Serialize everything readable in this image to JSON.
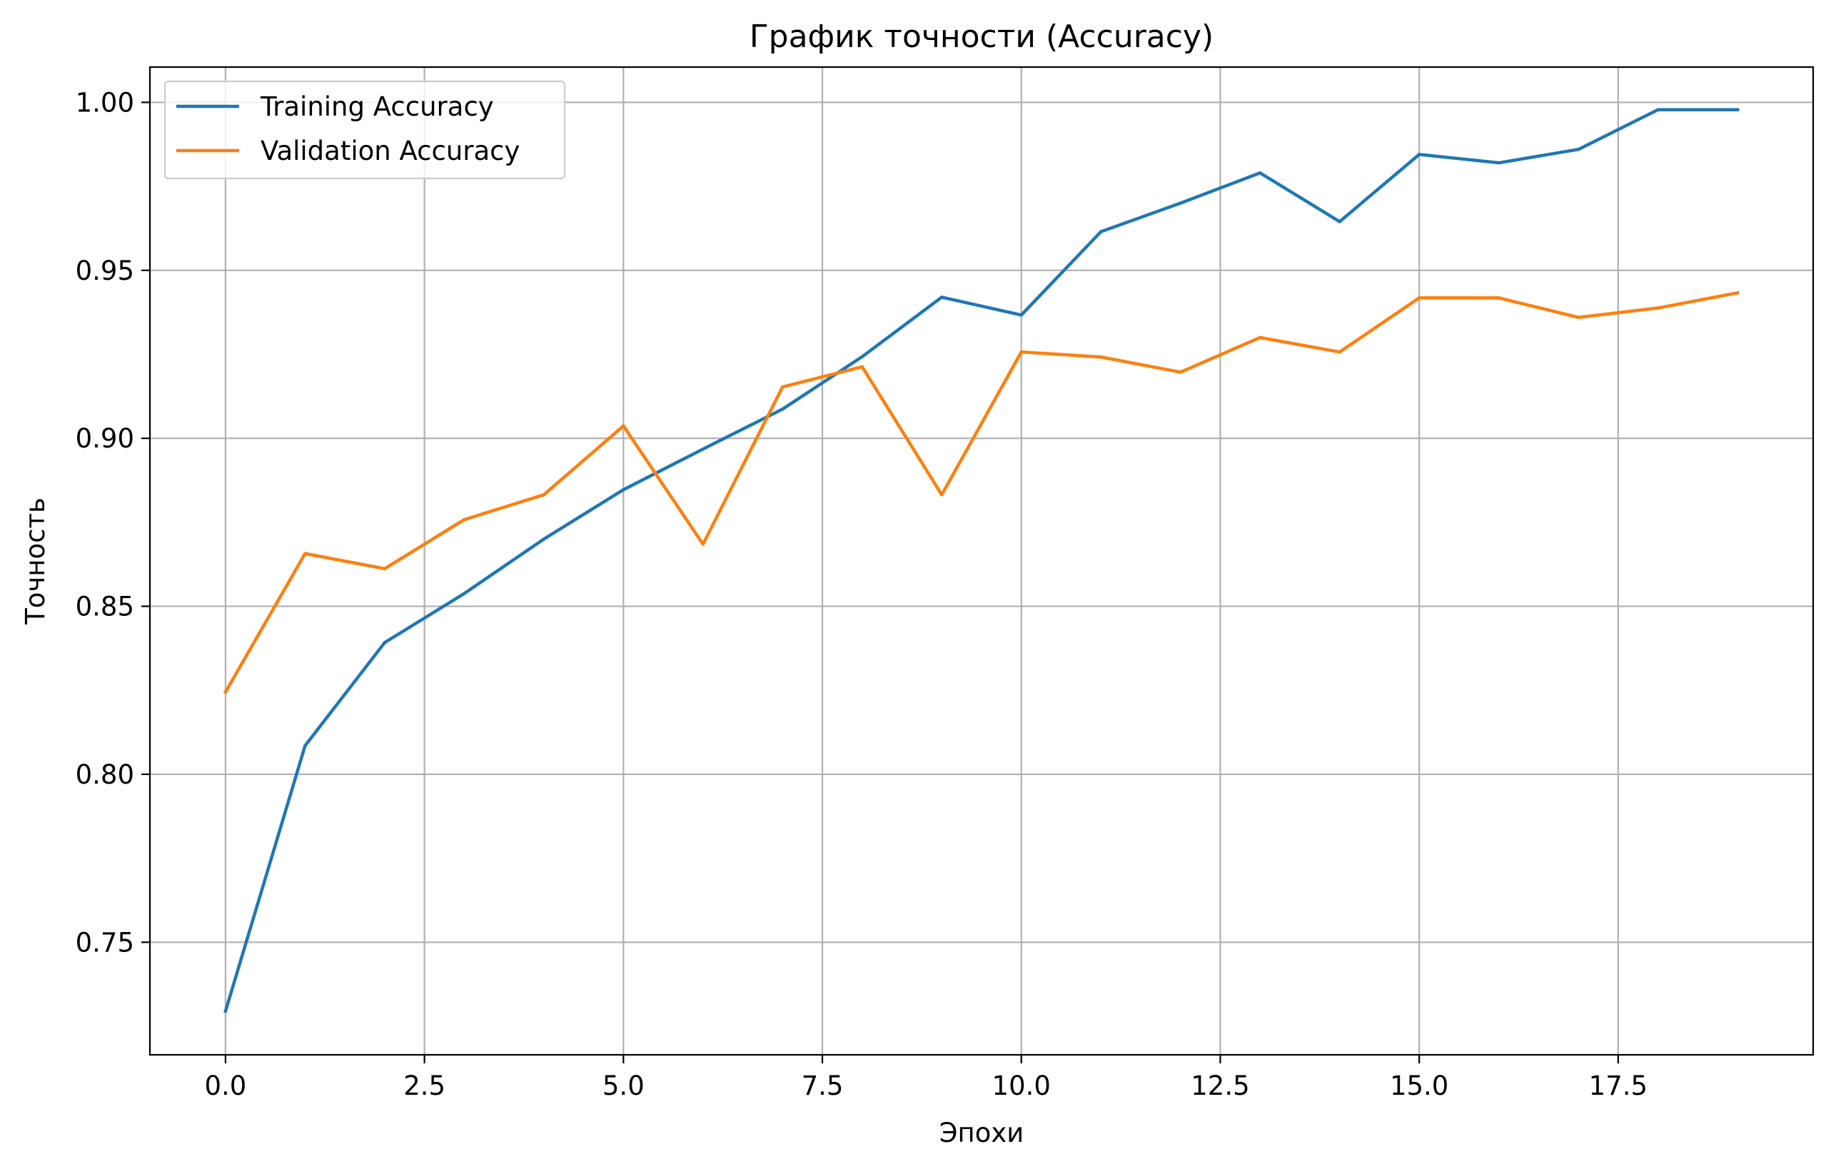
{
  "chart_data": {
    "type": "line",
    "title": "График точности (Accuracy)",
    "xlabel": "Эпохи",
    "ylabel": "Точность",
    "xlim": [
      -0.95,
      19.95
    ],
    "ylim": [
      0.7165,
      1.0105
    ],
    "xticks": [
      0.0,
      2.5,
      5.0,
      7.5,
      10.0,
      12.5,
      15.0,
      17.5
    ],
    "xtick_labels": [
      "0.0",
      "2.5",
      "5.0",
      "7.5",
      "10.0",
      "12.5",
      "15.0",
      "17.5"
    ],
    "yticks": [
      0.75,
      0.8,
      0.85,
      0.9,
      0.95,
      1.0
    ],
    "ytick_labels": [
      "0.75",
      "0.80",
      "0.85",
      "0.90",
      "0.95",
      "1.00"
    ],
    "grid": true,
    "legend_position": "top-left",
    "x": [
      0,
      1,
      2,
      3,
      4,
      5,
      6,
      7,
      8,
      9,
      10,
      11,
      12,
      13,
      14,
      15,
      16,
      17,
      18,
      19
    ],
    "series": [
      {
        "name": "Training Accuracy",
        "color": "#1f77b4",
        "values": [
          0.7295,
          0.8085,
          0.8392,
          0.8538,
          0.87,
          0.8847,
          0.8968,
          0.9087,
          0.9243,
          0.942,
          0.9367,
          0.9615,
          0.97,
          0.979,
          0.9645,
          0.9845,
          0.982,
          0.986,
          0.9978,
          0.9978
        ]
      },
      {
        "name": "Validation Accuracy",
        "color": "#ff7f0e",
        "values": [
          0.8245,
          0.8657,
          0.8612,
          0.8758,
          0.8832,
          0.9037,
          0.8685,
          0.9153,
          0.9213,
          0.8832,
          0.9257,
          0.9242,
          0.9197,
          0.93,
          0.9257,
          0.9418,
          0.9418,
          0.936,
          0.9388,
          0.9433
        ]
      }
    ]
  }
}
